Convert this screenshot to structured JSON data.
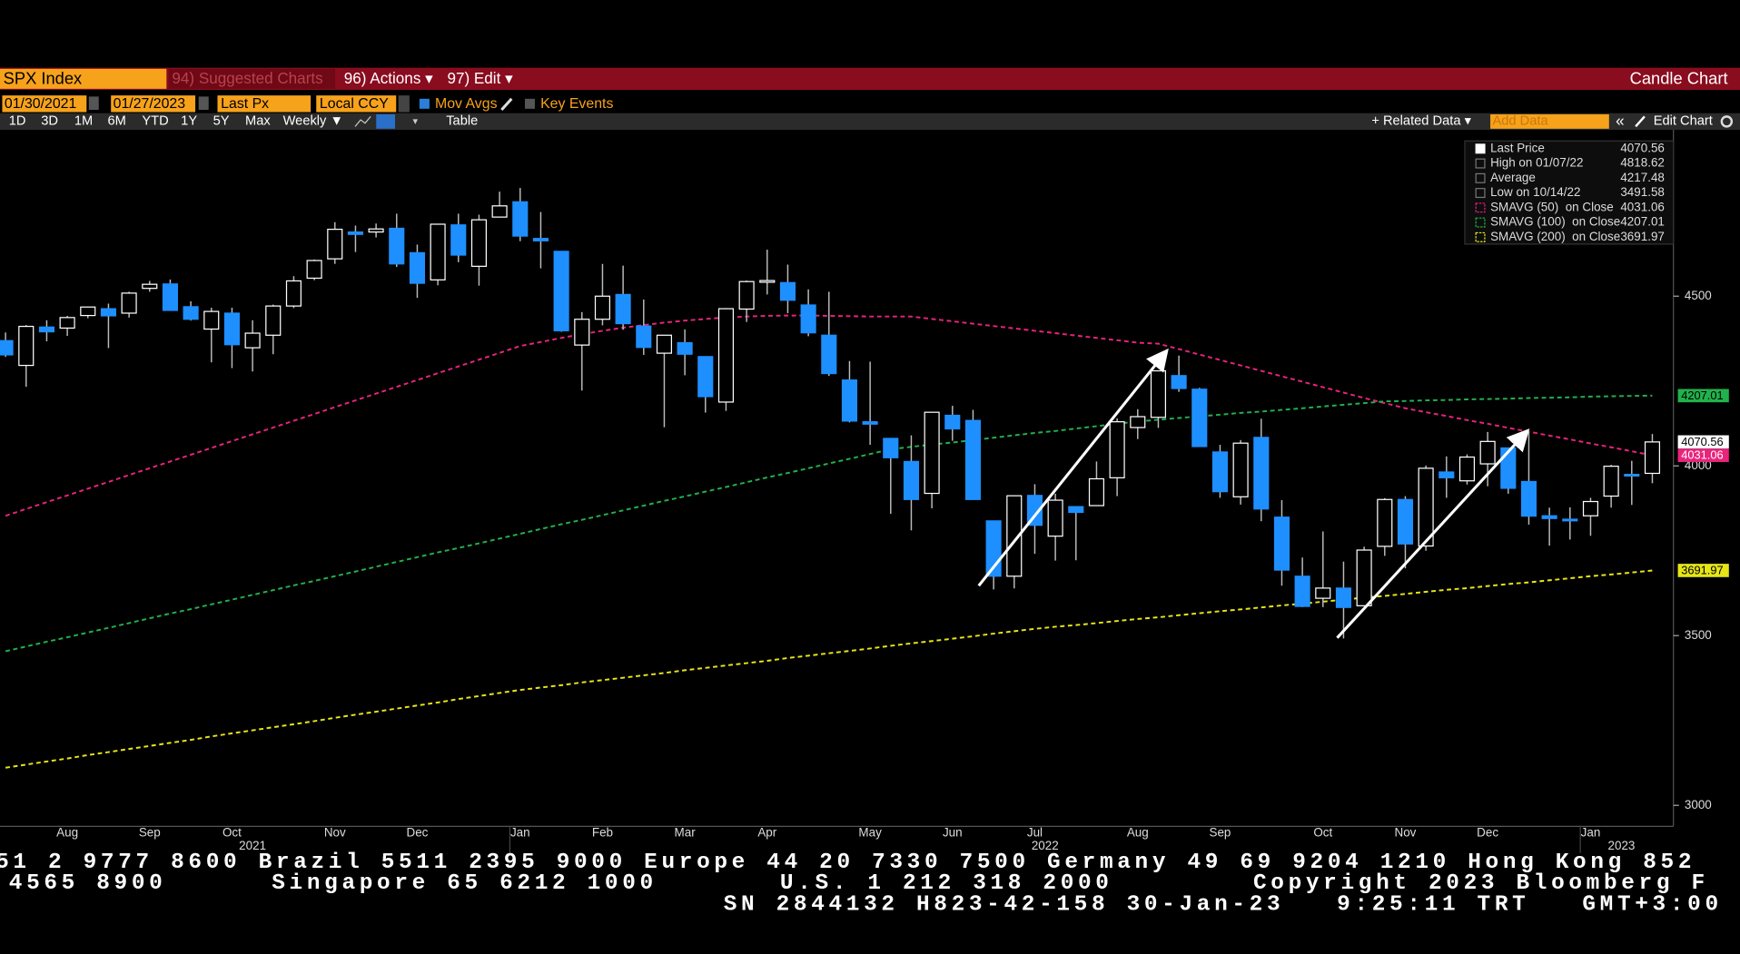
{
  "header": {
    "ticker": "SPX Index",
    "suggested": "94) Suggested Charts",
    "actions": "96) Actions ▾",
    "edit": "97) Edit ▾",
    "chart_kind": "Candle Chart"
  },
  "toolbar": {
    "start_date": "01/30/2021",
    "end_date": "01/27/2023",
    "field": "Last Px",
    "currency": "Local CCY",
    "mov_avgs": "Mov Avgs",
    "key_events": "Key Events",
    "periods": [
      "1D",
      "3D",
      "1M",
      "6M",
      "YTD",
      "1Y",
      "5Y",
      "Max"
    ],
    "frequency": "Weekly ▼",
    "table": "Table",
    "related": "+ Related Data ▾",
    "add_data": "Add Data",
    "edit_chart": "Edit Chart"
  },
  "chart_data": {
    "type": "candlestick",
    "categories": [
      null,
      null,
      null,
      "Aug",
      null,
      null,
      null,
      "Sep",
      null,
      null,
      null,
      "Oct",
      null,
      null,
      null,
      null,
      "Nov",
      null,
      null,
      null,
      "Dec",
      null,
      null,
      null,
      null,
      "Jan",
      null,
      null,
      null,
      "Feb",
      null,
      null,
      null,
      "Mar",
      null,
      null,
      null,
      "Apr",
      null,
      null,
      null,
      null,
      "May",
      null,
      null,
      null,
      "Jun",
      null,
      null,
      null,
      "Jul",
      null,
      null,
      null,
      null,
      "Aug",
      null,
      null,
      null,
      "Sep",
      null,
      null,
      null,
      null,
      "Oct",
      null,
      null,
      null,
      "Nov",
      null,
      null,
      null,
      "Dec",
      null,
      null,
      null,
      null,
      "Jan",
      null,
      null,
      null
    ],
    "years": [
      "2021",
      "2022",
      "2023"
    ],
    "open": [
      4369,
      4296,
      4409,
      4406,
      4443,
      4463,
      4450,
      4523,
      4536,
      4469,
      4403,
      4450,
      4348,
      4385,
      4471,
      4553,
      4610,
      4689,
      4689,
      4700,
      4628,
      4548,
      4710,
      4588,
      4733,
      4778,
      4670,
      4632,
      4356,
      4432,
      4505,
      4412,
      4332,
      4363,
      4322,
      4188,
      4462,
      4541,
      4540,
      4474,
      4385,
      4253,
      4130,
      4081,
      4013,
      3919,
      4149,
      4134,
      3838,
      3675,
      3913,
      3793,
      3880,
      3883,
      3965,
      4113,
      4143,
      4266,
      4226,
      4041,
      3909,
      4084,
      3849,
      3675,
      3610,
      3640,
      3588,
      3763,
      3901,
      3764,
      3982,
      3956,
      4006,
      4053,
      3954,
      3853,
      3843,
      3853,
      3911,
      3975,
      3978
    ],
    "high": [
      4393,
      4415,
      4429,
      4442,
      4468,
      4478,
      4513,
      4545,
      4549,
      4485,
      4466,
      4466,
      4429,
      4475,
      4559,
      4608,
      4718,
      4708,
      4714,
      4743,
      4652,
      4713,
      4743,
      4740,
      4808,
      4818.62,
      4748,
      4632,
      4453,
      4595,
      4590,
      4490,
      4385,
      4402,
      4323,
      4465,
      4546,
      4637,
      4593,
      4520,
      4513,
      4309,
      4307,
      4081,
      4090,
      4158,
      4177,
      4165,
      3838,
      3913,
      3946,
      3918,
      3880,
      4013,
      4140,
      4167,
      4280,
      4325,
      4230,
      4062,
      4076,
      4139,
      3899,
      3730,
      3807,
      3718,
      3762,
      3905,
      3911,
      4001,
      4028,
      4034,
      4100,
      4053,
      4101,
      3877,
      3878,
      3906,
      4003,
      4015,
      4094
    ],
    "low": [
      4321,
      4233,
      4367,
      4383,
      4435,
      4347,
      4437,
      4513,
      4457,
      4428,
      4305,
      4288,
      4278,
      4329,
      4465,
      4547,
      4595,
      4630,
      4673,
      4586,
      4495,
      4532,
      4600,
      4531,
      4733,
      4662,
      4582,
      4395,
      4222,
      4414,
      4401,
      4327,
      4114,
      4267,
      4157,
      4162,
      4424,
      4505,
      4450,
      4382,
      4265,
      4128,
      4062,
      3859,
      3810,
      3875,
      4074,
      3900,
      3636,
      3639,
      3741,
      3721,
      3722,
      3883,
      3911,
      4079,
      4112,
      4218,
      4057,
      3906,
      3886,
      3837,
      3647,
      3584,
      3584,
      3491.58,
      3588,
      3735,
      3698,
      3750,
      3906,
      3945,
      3940,
      3918,
      3827,
      3765,
      3783,
      3794,
      3877,
      3885,
      3949
    ],
    "close": [
      4327,
      4411,
      4395,
      4437,
      4468,
      4442,
      4509,
      4535,
      4458,
      4432,
      4455,
      4357,
      4391,
      4471,
      4545,
      4605,
      4697,
      4682,
      4698,
      4595,
      4538,
      4712,
      4621,
      4725,
      4766,
      4677,
      4663,
      4398,
      4432,
      4500,
      4419,
      4349,
      4385,
      4329,
      4204,
      4463,
      4543,
      4546,
      4488,
      4392,
      4272,
      4132,
      4123,
      4024,
      3901,
      4158,
      4109,
      3901,
      3675,
      3912,
      3825,
      3899,
      3863,
      3962,
      4130,
      4145,
      4280,
      4228,
      4057,
      3924,
      4067,
      3873,
      3693,
      3586,
      3640,
      3583,
      3752,
      3901,
      3770,
      3993,
      3965,
      4026,
      4072,
      3934,
      3852,
      3845,
      3839,
      3895,
      3999,
      3973,
      4070.56
    ],
    "up_color": "#ffffff",
    "down_color": "#1e8fff",
    "moving_averages": [
      {
        "name": "SMAVG (50)  on Close",
        "color": "#e8247c",
        "values": [
          3853,
          3873,
          3893,
          3913,
          3933,
          3953,
          3973,
          3993,
          4013,
          4033,
          4053,
          4073,
          4093,
          4113,
          4133,
          4153,
          4173,
          4193,
          4213,
          4233,
          4253,
          4273,
          4293,
          4313,
          4333,
          4353,
          4365,
          4377,
          4388,
          4398,
          4407,
          4415,
          4422,
          4428,
          4433,
          4437,
          4440,
          4442,
          4443,
          4443,
          4442,
          4441,
          4440,
          4440,
          4440,
          4433,
          4426,
          4419,
          4412,
          4405,
          4398,
          4391,
          4384,
          4377,
          4370,
          4363,
          4360,
          4344,
          4328,
          4312,
          4296,
          4280,
          4264,
          4248,
          4232,
          4216,
          4200,
          4185,
          4170,
          4158,
          4147,
          4135,
          4124,
          4112,
          4101,
          4089,
          4078,
          4066,
          4055,
          4043,
          4031.06
        ]
      },
      {
        "name": "SMAVG (100)  on Close",
        "color": "#22b14c",
        "values": [
          3454,
          3468,
          3482,
          3495,
          3509,
          3523,
          3537,
          3551,
          3565,
          3578,
          3592,
          3606,
          3620,
          3634,
          3648,
          3661,
          3675,
          3689,
          3703,
          3717,
          3731,
          3745,
          3758,
          3772,
          3786,
          3800,
          3814,
          3828,
          3841,
          3855,
          3869,
          3883,
          3897,
          3910,
          3924,
          3938,
          3952,
          3966,
          3979,
          3993,
          4007,
          4021,
          4035,
          4049,
          4056,
          4063,
          4069,
          4076,
          4083,
          4090,
          4097,
          4103,
          4110,
          4117,
          4124,
          4131,
          4136,
          4141,
          4146,
          4151,
          4156,
          4160,
          4165,
          4170,
          4175,
          4180,
          4185,
          4190,
          4191,
          4193,
          4194,
          4196,
          4197,
          4198,
          4200,
          4201,
          4202,
          4204,
          4205,
          4206,
          4207.01
        ]
      },
      {
        "name": "SMAVG (200)  on Close",
        "color": "#e6e619",
        "values": [
          3111,
          3120,
          3129,
          3138,
          3148,
          3157,
          3166,
          3175,
          3184,
          3193,
          3203,
          3212,
          3221,
          3230,
          3239,
          3248,
          3258,
          3267,
          3276,
          3285,
          3294,
          3303,
          3313,
          3322,
          3331,
          3340,
          3347,
          3354,
          3362,
          3369,
          3376,
          3383,
          3390,
          3398,
          3405,
          3412,
          3419,
          3426,
          3434,
          3441,
          3448,
          3455,
          3462,
          3470,
          3477,
          3484,
          3491,
          3498,
          3506,
          3513,
          3520,
          3526,
          3531,
          3537,
          3543,
          3549,
          3554,
          3560,
          3566,
          3572,
          3577,
          3583,
          3589,
          3594,
          3600,
          3606,
          3612,
          3617,
          3623,
          3629,
          3635,
          3640,
          3646,
          3652,
          3657,
          3663,
          3669,
          3675,
          3680,
          3686,
          3691.97
        ]
      }
    ],
    "stats": [
      {
        "label": "Last Price",
        "value": 4070.56
      },
      {
        "label": "High on 01/07/22",
        "value": 4818.62
      },
      {
        "label": "Average",
        "value": 4217.48
      },
      {
        "label": "Low on 10/14/22",
        "value": 3491.58
      }
    ],
    "ylim": [
      2938,
      4990
    ],
    "yticks": [
      3000,
      3500,
      4000,
      4500
    ],
    "grid": false
  },
  "footer": {
    "lines": [
      "51 2 9777 8600 Brazil 5511 2395 9000 Europe 44 20 7330 7500 Germany 49 69 9204 1210 Hong Kong 852",
      "4565 8900      Singapore 65 6212 1000       U.S. 1 212 318 2000        Copyright 2023 Bloomberg F",
      "SN 2844132 H823-42-158 30-Jan-23   9:25:11 TRT   GMT+3:00"
    ]
  }
}
